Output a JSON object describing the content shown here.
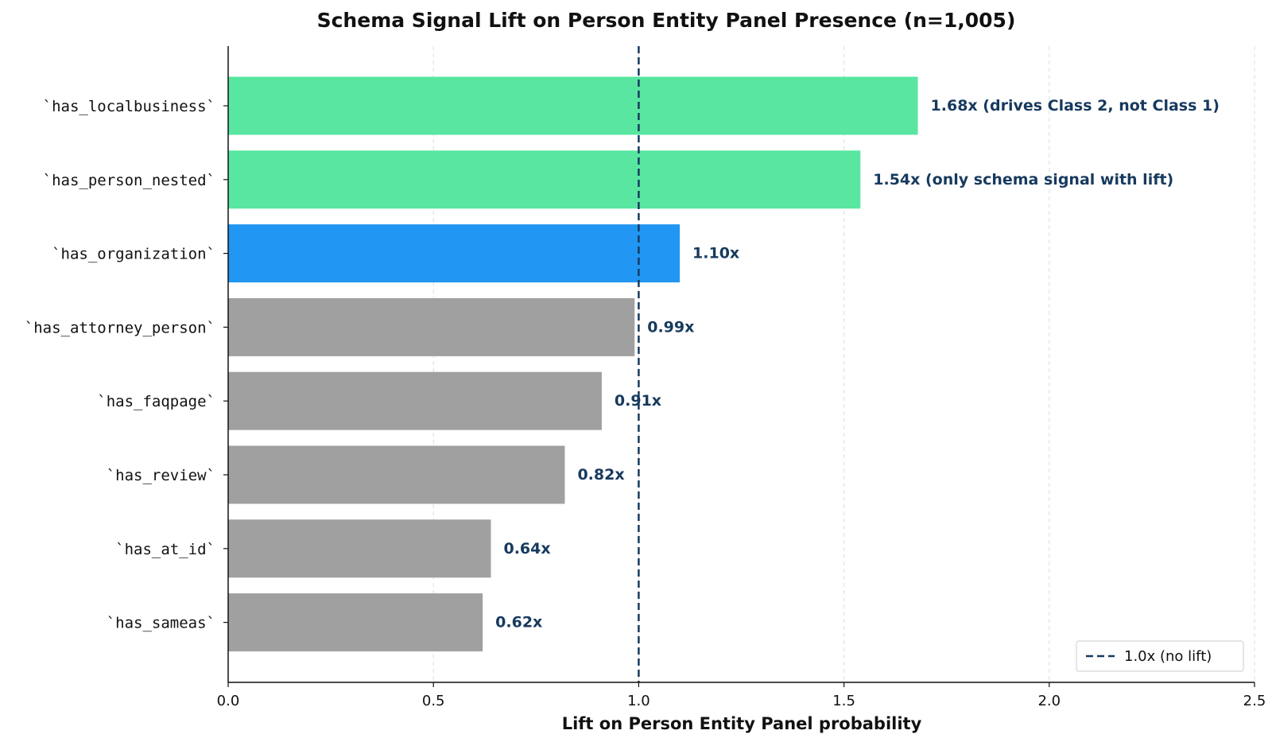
{
  "chart_data": {
    "type": "bar",
    "orientation": "horizontal",
    "title": "Schema Signal Lift on Person Entity Panel Presence (n=1,005)",
    "xlabel": "Lift on Person Entity Panel probability",
    "ylabel": "",
    "xlim": [
      0,
      2.5
    ],
    "xticks": [
      "0.0",
      "0.5",
      "1.0",
      "1.5",
      "2.0",
      "2.5"
    ],
    "xtick_values": [
      0,
      0.5,
      1.0,
      1.5,
      2.0,
      2.5
    ],
    "grid": "vertical dashed",
    "categories": [
      "`has_localbusiness`",
      "`has_person_nested`",
      "`has_organization`",
      "`has_attorney_person`",
      "`has_faqpage`",
      "`has_review`",
      "`has_at_id`",
      "`has_sameas`"
    ],
    "values": [
      1.68,
      1.54,
      1.1,
      0.99,
      0.91,
      0.82,
      0.64,
      0.62
    ],
    "value_labels": [
      "1.68x  (drives Class 2, not Class 1)",
      "1.54x  (only schema signal with lift)",
      "1.10x",
      "0.99x",
      "0.91x",
      "0.82x",
      "0.64x",
      "0.62x"
    ],
    "bar_colors": [
      "#58e6a0",
      "#58e6a0",
      "#2196f3",
      "#a0a0a0",
      "#a0a0a0",
      "#a0a0a0",
      "#a0a0a0",
      "#a0a0a0"
    ],
    "label_color": "#173a5e",
    "reference_line": {
      "x": 1.0,
      "label": "1.0x (no lift)",
      "color": "#173a5e",
      "style": "dashed"
    },
    "legend": {
      "position": "bottom-right",
      "entries": [
        "1.0x (no lift)"
      ]
    }
  }
}
